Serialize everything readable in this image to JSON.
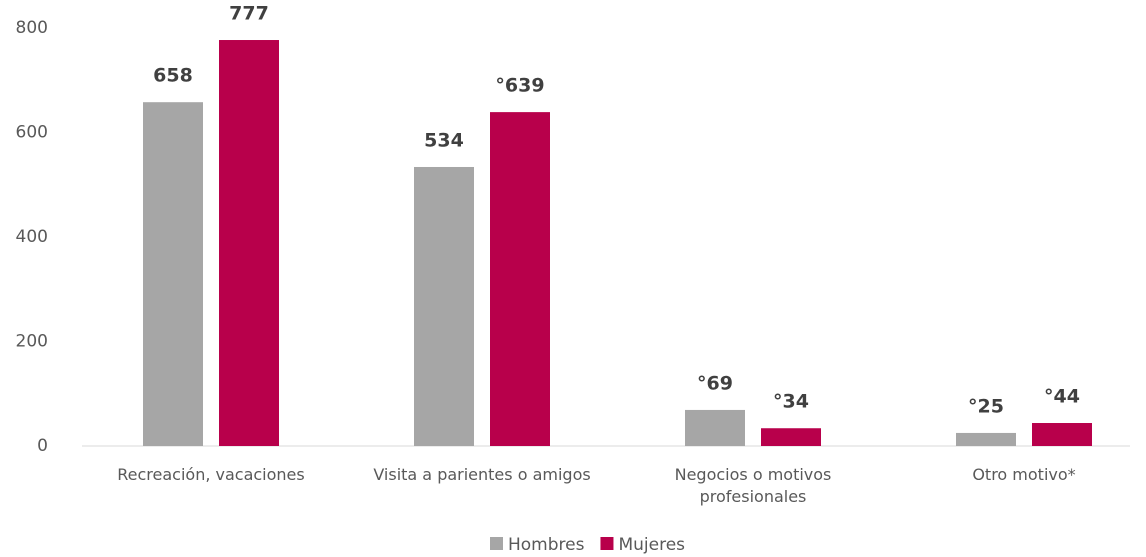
{
  "chart_data": {
    "type": "bar",
    "categories": [
      "Recreación, vacaciones",
      "Visita a parientes o amigos",
      "Negocios o motivos profesionales",
      "Otro motivo*"
    ],
    "series": [
      {
        "name": "Hombres",
        "color": "#a6a6a6",
        "values": [
          658,
          534,
          69,
          25
        ],
        "value_labels": [
          "658",
          "534",
          "°69",
          "°25"
        ]
      },
      {
        "name": "Mujeres",
        "color": "#b8004b",
        "values": [
          777,
          639,
          34,
          44
        ],
        "value_labels": [
          "777",
          "°639",
          "°34",
          "°44"
        ]
      }
    ],
    "ylim": [
      0,
      800
    ],
    "yticks": [
      0,
      200,
      400,
      600,
      800
    ],
    "grid": false,
    "legend": "bottom"
  }
}
